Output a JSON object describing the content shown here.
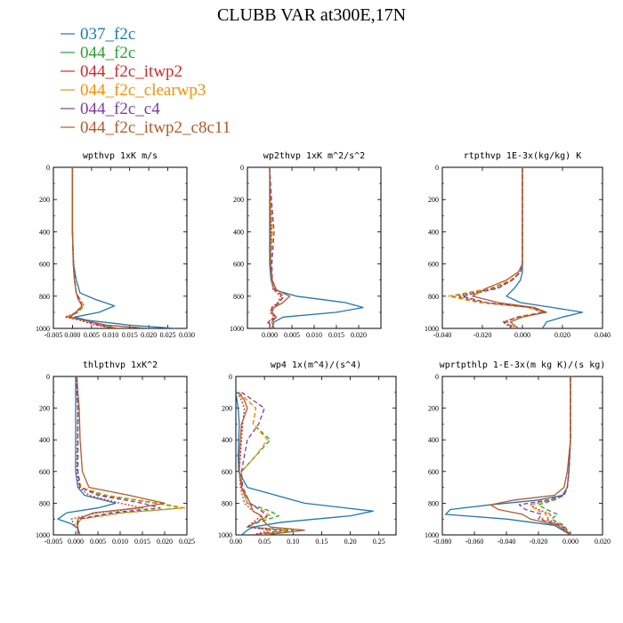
{
  "title": "CLUBB VAR at300E,17N",
  "legend": [
    {
      "label": "037_f2c",
      "color": "#1f77b4",
      "dash": "solid"
    },
    {
      "label": "044_f2c",
      "color": "#2ca02c",
      "dash": "dashed"
    },
    {
      "label": "044_f2c_itwp2",
      "color": "#d62728",
      "dash": "dotted"
    },
    {
      "label": "044_f2c_clearwp3",
      "color": "#ff8c00",
      "dash": "dashed"
    },
    {
      "label": "044_f2c_c4",
      "color": "#7b3f9e",
      "dash": "dashed"
    },
    {
      "label": "044_f2c_itwp2_c8c11",
      "color": "#b35a2a",
      "dash": "solid"
    }
  ],
  "chart_data": [
    {
      "type": "line",
      "title": "wpthvp  1xK m/s",
      "xlim": [
        -0.005,
        0.03
      ],
      "xticks": [
        "-0.005",
        "0.000",
        "0.005",
        "0.010",
        "0.015",
        "0.020",
        "0.025",
        "0.030"
      ],
      "ylim": [
        1000,
        0
      ],
      "yticks": [
        "0",
        "200",
        "400",
        "600",
        "800",
        "1000"
      ],
      "y": [
        0,
        200,
        400,
        600,
        700,
        780,
        820,
        860,
        900,
        930,
        950,
        980,
        1000
      ],
      "series": [
        {
          "name": "037_f2c",
          "values": [
            0,
            0,
            0,
            0.0003,
            0.001,
            0.002,
            0.006,
            0.011,
            0.007,
            0.0005,
            0.004,
            0.015,
            0.027
          ]
        },
        {
          "name": "044_f2c",
          "values": [
            0,
            0,
            0,
            0.0003,
            0.0006,
            0.001,
            0.002,
            0.003,
            0.0015,
            -0.001,
            0.003,
            0.008,
            0.012
          ]
        },
        {
          "name": "044_f2c_itwp2",
          "values": [
            0,
            0,
            0,
            0.0002,
            0.0005,
            0.001,
            0.002,
            0.003,
            0.001,
            -0.002,
            0.002,
            0.006,
            0.011
          ]
        },
        {
          "name": "044_f2c_clearwp3",
          "values": [
            0,
            0,
            0,
            0.0003,
            0.0006,
            0.001,
            0.002,
            0.003,
            0.001,
            -0.0015,
            0.003,
            0.008,
            0.012
          ]
        },
        {
          "name": "044_f2c_c4",
          "values": [
            0,
            0,
            0,
            0.0003,
            0.0006,
            0.001,
            0.0018,
            0.0025,
            0.001,
            -0.001,
            0.003,
            0.007,
            0.011
          ]
        },
        {
          "name": "044_f2c_itwp2_c8c11",
          "values": [
            0,
            0,
            0,
            0.0002,
            0.0005,
            0.001,
            0.0015,
            0.0025,
            0.0008,
            -0.0005,
            0.003,
            0.009,
            0.02
          ]
        }
      ]
    },
    {
      "type": "line",
      "title": "wp2thvp  1xK m^2/s^2",
      "xlim": [
        -0.005,
        0.025
      ],
      "xticks": [
        "0.000",
        "0.005",
        "0.010",
        "0.015",
        "0.020"
      ],
      "ylim": [
        1000,
        0
      ],
      "yticks": [
        "0",
        "200",
        "400",
        "600",
        "800",
        "1000"
      ],
      "y": [
        0,
        200,
        400,
        600,
        700,
        760,
        800,
        840,
        870,
        900,
        930,
        960,
        1000
      ],
      "series": [
        {
          "name": "037_f2c",
          "values": [
            0,
            0,
            0,
            0,
            0.0003,
            0.001,
            0.006,
            0.017,
            0.021,
            0.015,
            0.003,
            0.001,
            0.0005
          ]
        },
        {
          "name": "044_f2c",
          "values": [
            0,
            0.0003,
            0.0006,
            0.0003,
            0.0005,
            0.001,
            0.003,
            0.002,
            0.0005,
            0.0002,
            0.0015,
            -0.0003,
            0.0005
          ]
        },
        {
          "name": "044_f2c_itwp2",
          "values": [
            0,
            0.0002,
            0.0004,
            0.0002,
            0.0004,
            0.0008,
            0.0025,
            0.0018,
            0.0004,
            0.0001,
            0.001,
            -0.0005,
            0.0004
          ]
        },
        {
          "name": "044_f2c_clearwp3",
          "values": [
            0,
            0.0003,
            0.0006,
            0.0003,
            0.0005,
            0.001,
            0.003,
            0.002,
            0.0005,
            0.0002,
            0.0015,
            -0.0003,
            0.0005
          ]
        },
        {
          "name": "044_f2c_c4",
          "values": [
            0,
            0.0004,
            0.001,
            0.0005,
            0.0006,
            0.0012,
            0.0032,
            0.0022,
            0.0006,
            0.0003,
            0.0015,
            -0.0002,
            0.0005
          ]
        },
        {
          "name": "044_f2c_itwp2_c8c11",
          "values": [
            0,
            0.0001,
            0.0002,
            0.0002,
            0.0006,
            0.0015,
            0.0045,
            0.003,
            0.001,
            0.0005,
            0.0015,
            0.0005,
            0.001
          ]
        }
      ]
    },
    {
      "type": "line",
      "title": "rtpthvp  1E-3x(kg/kg) K",
      "xlim": [
        -0.04,
        0.04
      ],
      "xticks": [
        "-0.040",
        "-0.020",
        "0.000",
        "0.020",
        "0.040"
      ],
      "ylim": [
        1000,
        0
      ],
      "yticks": [
        "0",
        "200",
        "400",
        "600",
        "800",
        "1000"
      ],
      "y": [
        0,
        200,
        400,
        600,
        650,
        700,
        750,
        800,
        840,
        870,
        900,
        930,
        960,
        1000
      ],
      "series": [
        {
          "name": "037_f2c",
          "values": [
            0,
            0,
            0,
            0,
            0,
            -0.001,
            -0.004,
            -0.008,
            -0.001,
            0.015,
            0.03,
            0.02,
            0.012,
            0.01
          ]
        },
        {
          "name": "044_f2c",
          "values": [
            0,
            0,
            0,
            0,
            -0.001,
            -0.005,
            -0.015,
            -0.035,
            -0.02,
            0.003,
            0.01,
            -0.003,
            -0.008,
            -0.003
          ]
        },
        {
          "name": "044_f2c_itwp2",
          "values": [
            0,
            0,
            0,
            0,
            -0.001,
            -0.005,
            -0.013,
            -0.032,
            -0.018,
            0.005,
            0.012,
            -0.002,
            -0.01,
            -0.005
          ]
        },
        {
          "name": "044_f2c_clearwp3",
          "values": [
            0,
            0,
            0,
            0,
            -0.001,
            -0.006,
            -0.016,
            -0.037,
            -0.022,
            0.003,
            0.01,
            -0.003,
            -0.008,
            -0.003
          ]
        },
        {
          "name": "044_f2c_c4",
          "values": [
            0,
            0,
            0,
            0,
            -0.001,
            -0.005,
            -0.012,
            -0.03,
            -0.018,
            0.004,
            0.011,
            -0.002,
            -0.009,
            -0.004
          ]
        },
        {
          "name": "044_f2c_itwp2_c8c11",
          "values": [
            0,
            0,
            0,
            0,
            -0.002,
            -0.008,
            -0.018,
            -0.025,
            -0.012,
            0.006,
            0.012,
            0.0,
            -0.006,
            -0.002
          ]
        }
      ]
    },
    {
      "type": "line",
      "title": "thlpthvp  1xK^2",
      "xlim": [
        -0.005,
        0.025
      ],
      "xticks": [
        "-0.005",
        "0.000",
        "0.005",
        "0.010",
        "0.015",
        "0.020",
        "0.025"
      ],
      "ylim": [
        1000,
        0
      ],
      "yticks": [
        "0",
        "200",
        "400",
        "600",
        "800",
        "1000"
      ],
      "y": [
        0,
        100,
        200,
        400,
        600,
        700,
        750,
        800,
        830,
        860,
        900,
        930,
        960,
        1000
      ],
      "series": [
        {
          "name": "037_f2c",
          "values": [
            0,
            0,
            0,
            0,
            0,
            0.0005,
            0.002,
            0.009,
            0.005,
            -0.002,
            -0.004,
            -0.001,
            0.0005,
            0.001
          ]
        },
        {
          "name": "044_f2c",
          "values": [
            0.0002,
            0.0003,
            0.0005,
            0.0005,
            0.0005,
            0.001,
            0.006,
            0.018,
            0.024,
            0.01,
            0.001,
            0.0005,
            0.0005,
            0.0005
          ]
        },
        {
          "name": "044_f2c_itwp2",
          "values": [
            0.0002,
            0.0003,
            0.0005,
            0.0004,
            0.0003,
            0.0008,
            0.003,
            0.01,
            0.015,
            0.005,
            -0.001,
            -0.0005,
            0.0005,
            0.0005
          ]
        },
        {
          "name": "044_f2c_clearwp3",
          "values": [
            0.0002,
            0.0003,
            0.0005,
            0.0005,
            0.0005,
            0.0012,
            0.007,
            0.019,
            0.0245,
            0.011,
            0.0012,
            0.0005,
            0.0005,
            0.0005
          ]
        },
        {
          "name": "044_f2c_c4",
          "values": [
            0.0002,
            0.0003,
            0.0005,
            0.0005,
            0.0005,
            0.001,
            0.005,
            0.015,
            0.019,
            0.008,
            0.0008,
            0.0004,
            0.0005,
            0.0005
          ]
        },
        {
          "name": "044_f2c_itwp2_c8c11",
          "values": [
            0.0003,
            0.0005,
            0.0008,
            0.001,
            0.0015,
            0.003,
            0.012,
            0.02,
            0.014,
            0.004,
            0.0005,
            0.0003,
            0.0005,
            0.0005
          ]
        }
      ]
    },
    {
      "type": "line",
      "title": "wp4  1x(m^4)/(s^4)",
      "xlim": [
        0,
        0.28
      ],
      "xticks": [
        "0.00",
        "0.05",
        "0.10",
        "0.15",
        "0.20",
        "0.25"
      ],
      "ylim": [
        1000,
        0
      ],
      "yticks": [
        "0",
        "200",
        "400",
        "600",
        "800",
        "1000"
      ],
      "y": [
        100,
        150,
        200,
        300,
        400,
        500,
        600,
        700,
        800,
        850,
        880,
        920,
        950,
        970,
        1000
      ],
      "series": [
        {
          "name": "037_f2c",
          "values": [
            0,
            0.002,
            0.004,
            0.006,
            0.005,
            0.004,
            0.005,
            0.02,
            0.12,
            0.24,
            0.2,
            0.08,
            0.03,
            0.02,
            0.01
          ]
        },
        {
          "name": "044_f2c",
          "values": [
            0.005,
            0.02,
            0.035,
            0.03,
            0.06,
            0.035,
            0.01,
            0.01,
            0.02,
            0.06,
            0.075,
            0.04,
            0.02,
            0.1,
            0.04
          ]
        },
        {
          "name": "044_f2c_itwp2",
          "values": [
            0.002,
            0.01,
            0.015,
            0.012,
            0.01,
            0.008,
            0.006,
            0.008,
            0.015,
            0.03,
            0.045,
            0.03,
            0.02,
            0.06,
            0.03
          ]
        },
        {
          "name": "044_f2c_clearwp3",
          "values": [
            0.005,
            0.02,
            0.035,
            0.03,
            0.055,
            0.035,
            0.01,
            0.01,
            0.02,
            0.05,
            0.06,
            0.035,
            0.02,
            0.09,
            0.04
          ]
        },
        {
          "name": "044_f2c_c4",
          "values": [
            0.01,
            0.03,
            0.05,
            0.04,
            0.02,
            0.015,
            0.01,
            0.012,
            0.025,
            0.045,
            0.055,
            0.035,
            0.02,
            0.08,
            0.035
          ]
        },
        {
          "name": "044_f2c_itwp2_c8c11",
          "values": [
            0.004,
            0.015,
            0.02,
            0.01,
            0.008,
            0.006,
            0.006,
            0.01,
            0.025,
            0.03,
            0.045,
            0.05,
            0.06,
            0.12,
            0.05
          ]
        }
      ]
    },
    {
      "type": "line",
      "title": "wprtpthlp  1-E-3x(m kg K)/(s kg)",
      "xlim": [
        -0.08,
        0.02
      ],
      "xticks": [
        "-0.080",
        "-0.060",
        "-0.040",
        "-0.020",
        "0.000",
        "0.020"
      ],
      "ylim": [
        1000,
        0
      ],
      "yticks": [
        "0",
        "200",
        "400",
        "600",
        "800",
        "1000"
      ],
      "y": [
        0,
        200,
        400,
        600,
        700,
        750,
        780,
        810,
        840,
        870,
        900,
        940,
        1000
      ],
      "series": [
        {
          "name": "037_f2c",
          "values": [
            0,
            0,
            0,
            -0.001,
            -0.002,
            -0.005,
            -0.02,
            -0.05,
            -0.075,
            -0.078,
            -0.04,
            -0.01,
            0
          ]
        },
        {
          "name": "044_f2c",
          "values": [
            0,
            0,
            0,
            -0.001,
            -0.002,
            -0.004,
            -0.01,
            -0.02,
            -0.015,
            -0.008,
            -0.012,
            -0.004,
            0
          ]
        },
        {
          "name": "044_f2c_itwp2",
          "values": [
            0,
            0,
            0,
            -0.001,
            -0.002,
            -0.004,
            -0.012,
            -0.025,
            -0.02,
            -0.012,
            -0.015,
            -0.005,
            0
          ]
        },
        {
          "name": "044_f2c_clearwp3",
          "values": [
            0,
            0,
            0,
            -0.001,
            -0.002,
            -0.004,
            -0.012,
            -0.025,
            -0.022,
            -0.015,
            -0.018,
            -0.006,
            0
          ]
        },
        {
          "name": "044_f2c_c4",
          "values": [
            0,
            0,
            0,
            -0.001,
            -0.002,
            -0.004,
            -0.014,
            -0.032,
            -0.028,
            -0.018,
            -0.02,
            -0.006,
            0
          ]
        },
        {
          "name": "044_f2c_itwp2_c8c11",
          "values": [
            0,
            0,
            0,
            -0.002,
            -0.004,
            -0.01,
            -0.035,
            -0.05,
            -0.045,
            -0.03,
            -0.025,
            -0.008,
            0
          ]
        }
      ]
    }
  ]
}
